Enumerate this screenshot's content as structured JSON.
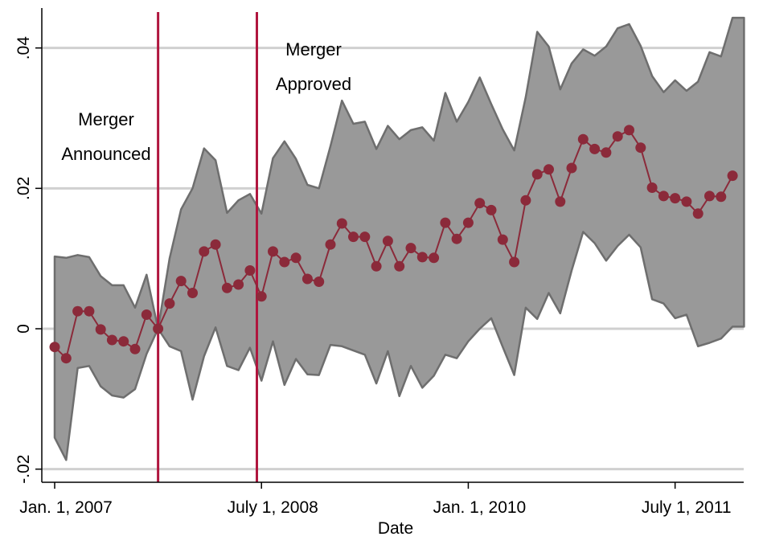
{
  "chart_data": {
    "type": "line",
    "xlabel": "Date",
    "ylabel": "",
    "x_ticks": [
      {
        "month": 0,
        "label": "Jan. 1, 2007"
      },
      {
        "month": 18,
        "label": "July 1, 2008"
      },
      {
        "month": 36,
        "label": "Jan. 1, 2010"
      },
      {
        "month": 54,
        "label": "July 1, 2011"
      }
    ],
    "y_ticks": [
      {
        "value": -0.02,
        "label": "-.02"
      },
      {
        "value": 0,
        "label": "0"
      },
      {
        "value": 0.02,
        "label": ".02"
      },
      {
        "value": 0.04,
        "label": ".04"
      }
    ],
    "ylim": [
      -0.021,
      0.044
    ],
    "xlim": [
      -0.5,
      60.5
    ],
    "grid": true,
    "colors": {
      "line": "#8B2A3A",
      "band_fill": "#999999",
      "band_edge": "#6E6E6E",
      "vline": "#B0163E",
      "grid": "#D0D0D0"
    },
    "annotations": [
      {
        "lines": [
          "Merger",
          "Announced"
        ],
        "month": 9
      },
      {
        "lines": [
          "Merger",
          "Approved"
        ],
        "month": 17.6
      }
    ],
    "vlines": [
      9,
      17.6
    ],
    "series": [
      {
        "x": [
          0,
          1,
          2,
          3,
          4,
          5,
          6,
          7,
          8,
          9,
          10,
          11,
          12,
          13,
          14,
          15,
          16,
          17,
          18,
          19,
          20,
          21,
          22,
          23,
          24,
          25,
          26,
          27,
          28,
          29,
          30,
          31,
          32,
          33,
          34,
          35,
          36,
          37,
          38,
          39,
          40,
          41,
          42,
          43,
          44,
          45,
          46,
          47,
          48,
          49,
          50,
          51,
          52,
          53,
          54,
          55,
          56,
          57,
          58,
          59,
          60
        ],
        "values": [
          -0.0026,
          -0.0042,
          0.0025,
          0.0025,
          -0.0001,
          -0.0016,
          -0.0018,
          -0.0029,
          0.002,
          0.0,
          0.0036,
          0.0068,
          0.0051,
          0.011,
          0.012,
          0.0058,
          0.0063,
          0.0083,
          0.0046,
          0.011,
          0.0095,
          0.0101,
          0.0071,
          0.0067,
          0.012,
          0.015,
          0.0131,
          0.0131,
          0.0089,
          0.0125,
          0.0089,
          0.0115,
          0.0102,
          0.0101,
          0.0151,
          0.0128,
          0.0151,
          0.0179,
          0.0169,
          0.0127,
          0.0095,
          0.0183,
          0.022,
          0.0227,
          0.0181,
          0.0229,
          0.027,
          0.0256,
          0.0251,
          0.0274,
          0.0283,
          0.0258,
          0.0201,
          0.0189,
          0.0186,
          0.0181,
          0.0164,
          0.0189,
          0.0188,
          0.0218,
          null
        ]
      }
    ],
    "band": {
      "x": [
        0,
        1,
        2,
        3,
        4,
        5,
        6,
        7,
        8,
        9,
        10,
        11,
        12,
        13,
        14,
        15,
        16,
        17,
        18,
        19,
        20,
        21,
        22,
        23,
        24,
        25,
        26,
        27,
        28,
        29,
        30,
        31,
        32,
        33,
        34,
        35,
        36,
        37,
        38,
        39,
        40,
        41,
        42,
        43,
        44,
        45,
        46,
        47,
        48,
        49,
        50,
        51,
        52,
        53,
        54,
        55,
        56,
        57,
        58,
        59,
        60
      ],
      "upper": [
        0.0103,
        0.0101,
        0.0105,
        0.0102,
        0.0075,
        0.0062,
        0.0062,
        0.003,
        0.0077,
        0.0,
        0.01,
        0.017,
        0.02,
        0.0257,
        0.024,
        0.0165,
        0.0183,
        0.0192,
        0.0164,
        0.0243,
        0.0267,
        0.0242,
        0.0205,
        0.02,
        0.026,
        0.0325,
        0.0292,
        0.0295,
        0.0256,
        0.0289,
        0.027,
        0.0283,
        0.0287,
        0.0268,
        0.0336,
        0.0295,
        0.0323,
        0.0358,
        0.032,
        0.0284,
        0.0254,
        0.033,
        0.0423,
        0.0402,
        0.0341,
        0.0378,
        0.0398,
        0.0389,
        0.0402,
        0.0428,
        0.0434,
        0.0403,
        0.036,
        0.0337,
        0.0354,
        0.0339,
        0.0352,
        0.0394,
        0.0388,
        0.0443,
        0.0443
      ],
      "lower": [
        -0.0155,
        -0.0187,
        -0.0056,
        -0.0053,
        -0.0082,
        -0.0095,
        -0.0098,
        -0.0086,
        -0.0036,
        0.0,
        -0.0025,
        -0.0032,
        -0.0101,
        -0.0039,
        0.0002,
        -0.0053,
        -0.0059,
        -0.0027,
        -0.0074,
        -0.0018,
        -0.008,
        -0.0043,
        -0.0065,
        -0.0066,
        -0.0023,
        -0.0025,
        -0.0031,
        -0.0037,
        -0.0078,
        -0.0032,
        -0.0096,
        -0.0053,
        -0.0084,
        -0.0067,
        -0.0037,
        -0.0042,
        -0.0018,
        0.0,
        0.0015,
        -0.0026,
        -0.0066,
        0.003,
        0.0014,
        0.0051,
        0.0022,
        0.0083,
        0.0138,
        0.0122,
        0.0097,
        0.0118,
        0.0134,
        0.0116,
        0.0042,
        0.0036,
        0.0015,
        0.002,
        -0.0025,
        -0.002,
        -0.0014,
        0.0003,
        0.0003
      ]
    }
  }
}
